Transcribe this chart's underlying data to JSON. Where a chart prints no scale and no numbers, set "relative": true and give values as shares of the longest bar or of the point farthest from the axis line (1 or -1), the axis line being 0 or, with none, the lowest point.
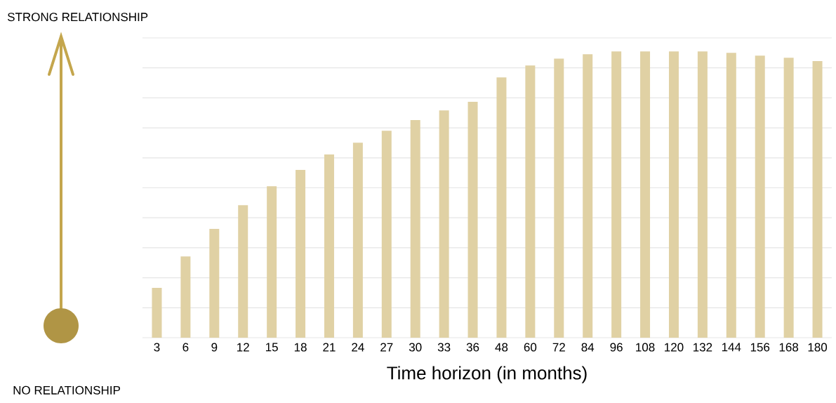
{
  "chart_data": {
    "type": "bar",
    "relative": true,
    "xlabel": "Time horizon (in months)",
    "categories": [
      "3",
      "6",
      "9",
      "12",
      "15",
      "18",
      "21",
      "24",
      "27",
      "30",
      "33",
      "36",
      "48",
      "60",
      "72",
      "84",
      "96",
      "108",
      "120",
      "132",
      "144",
      "156",
      "168",
      "180"
    ],
    "values": [
      0.174,
      0.284,
      0.38,
      0.463,
      0.529,
      0.586,
      0.64,
      0.681,
      0.723,
      0.76,
      0.794,
      0.824,
      0.909,
      0.951,
      0.975,
      0.99,
      1,
      1,
      1,
      1,
      0.995,
      0.985,
      0.978,
      0.966
    ],
    "color": "#e0d1a4",
    "grid": "y",
    "annotations": [
      "STRONG RELATIONSHIP",
      "NO RELATIONSHIP"
    ]
  }
}
